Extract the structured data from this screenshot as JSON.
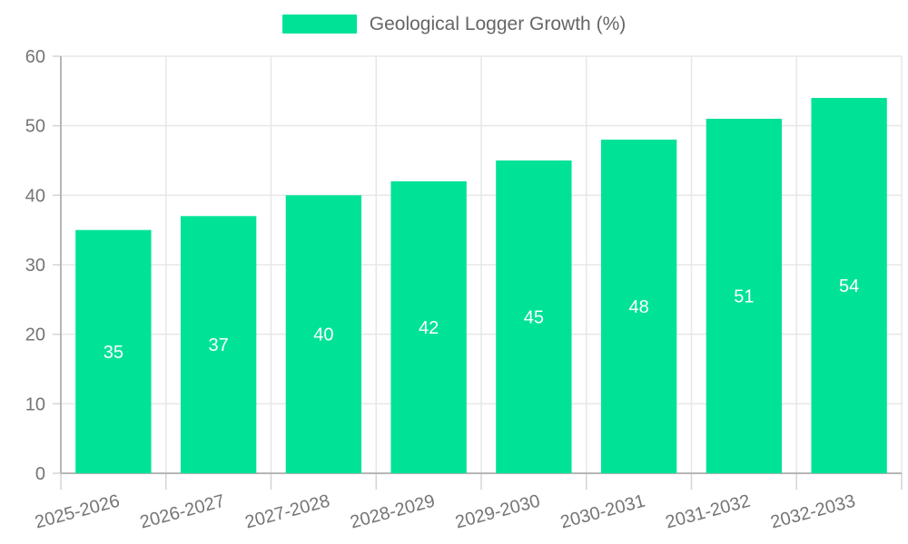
{
  "chart": {
    "legend": {
      "label": "Geological Logger Growth (%)",
      "position": "top"
    },
    "colors": {
      "bar": "#00e396",
      "grid": "#e7e7e7",
      "axis_line": "#b6b6b6",
      "tick": "#d4d4d4",
      "axis_label": "#757575",
      "data_label": "#ffffff",
      "legend_text": "#666666",
      "background": "#ffffff"
    }
  },
  "chart_data": {
    "type": "bar",
    "title": "",
    "xlabel": "",
    "ylabel": "",
    "series": [
      {
        "name": "Geological Logger Growth (%)",
        "values": [
          35,
          37,
          40,
          42,
          45,
          48,
          51,
          54
        ]
      }
    ],
    "categories": [
      "2025-2026",
      "2026-2027",
      "2027-2028",
      "2028-2029",
      "2029-2030",
      "2030-2031",
      "2031-2032",
      "2032-2033"
    ],
    "yticks": [
      0,
      10,
      20,
      30,
      40,
      50,
      60
    ],
    "ylim": [
      0,
      60
    ],
    "grid": "both",
    "legend_position": "top",
    "data_labels": "inside-center-white",
    "x_label_rotation_deg": -15
  }
}
